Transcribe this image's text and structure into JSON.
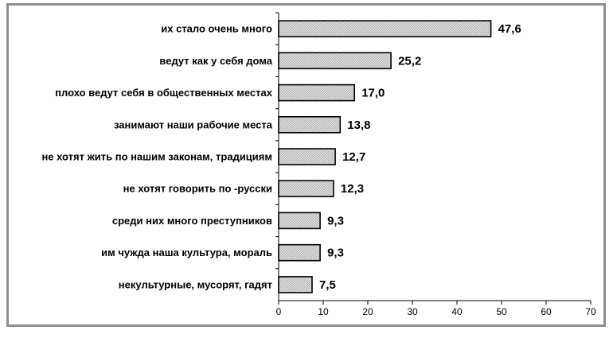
{
  "chart_data": {
    "type": "bar",
    "orientation": "horizontal",
    "title": "",
    "xlabel": "",
    "ylabel": "",
    "categories": [
      "их стало очень много",
      "ведут как  у себя дома",
      "плохо ведут себя в общественных местах",
      "занимают наши рабочие места",
      "не хотят жить по нашим законам, традициям",
      "не хотят говорить по -русски",
      "среди них много преступников",
      "им чужда наша культура, мораль",
      "некультурные, мусорят, гадят"
    ],
    "values": [
      47.6,
      25.2,
      17.0,
      13.8,
      12.7,
      12.3,
      9.3,
      9.3,
      7.5
    ],
    "value_labels": [
      "47,6",
      "25,2",
      "17,0",
      "13,8",
      "12,7",
      "12,3",
      "9,3",
      "9,3",
      "7,5"
    ],
    "xlim": [
      0,
      70
    ],
    "xticks": [
      0,
      10,
      20,
      30,
      40,
      50,
      60,
      70
    ],
    "xtick_labels": [
      "0",
      "10",
      "20",
      "30",
      "40",
      "50",
      "60",
      "70"
    ],
    "grid": false,
    "legend": "none",
    "bar_fill": "#d6d6d6",
    "bar_stroke": "#000000",
    "frame_color": "#8e8e8e"
  }
}
